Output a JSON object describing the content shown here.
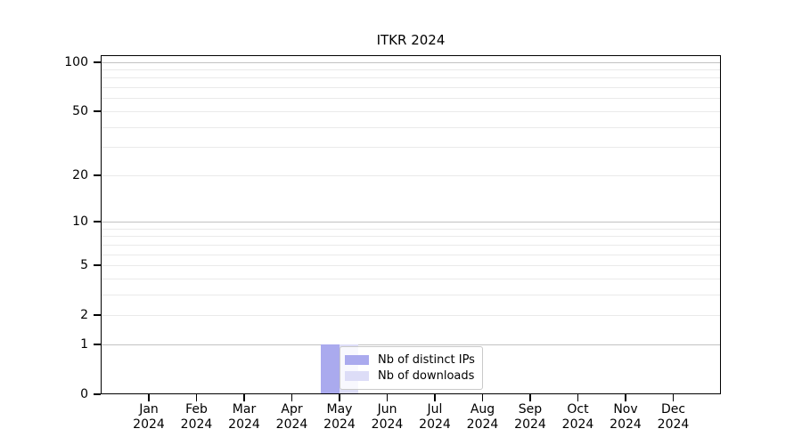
{
  "chart_data": {
    "type": "bar",
    "title": "ITKR 2024",
    "categories": [
      "Jan 2024",
      "Feb 2024",
      "Mar 2024",
      "Apr 2024",
      "May 2024",
      "Jun 2024",
      "Jul 2024",
      "Aug 2024",
      "Sep 2024",
      "Oct 2024",
      "Nov 2024",
      "Dec 2024"
    ],
    "series": [
      {
        "name": "Nb of distinct IPs",
        "color": "#aaaaee",
        "values": [
          0,
          0,
          0,
          0,
          1,
          0,
          0,
          0,
          0,
          0,
          0,
          0
        ]
      },
      {
        "name": "Nb of downloads",
        "color": "#ddddf7",
        "values": [
          0,
          0,
          0,
          0,
          1,
          0,
          0,
          0,
          0,
          0,
          0,
          0
        ]
      }
    ],
    "xlabel": "",
    "ylabel": "",
    "yscale": "log1p",
    "ylim": [
      0,
      110
    ],
    "yticks": [
      0,
      1,
      2,
      5,
      10,
      20,
      50,
      100
    ],
    "major_gridlines": [
      1,
      10,
      100
    ],
    "minor_gridlines": [
      2,
      3,
      4,
      5,
      6,
      7,
      8,
      9,
      20,
      30,
      40,
      50,
      60,
      70,
      80,
      90
    ],
    "grid": "horizontal",
    "legend_position": "inside lower center",
    "colors": {
      "major_grid": "#c2c2c2",
      "minor_grid": "#eaeaea",
      "axis": "#000000",
      "background": "#ffffff"
    }
  }
}
